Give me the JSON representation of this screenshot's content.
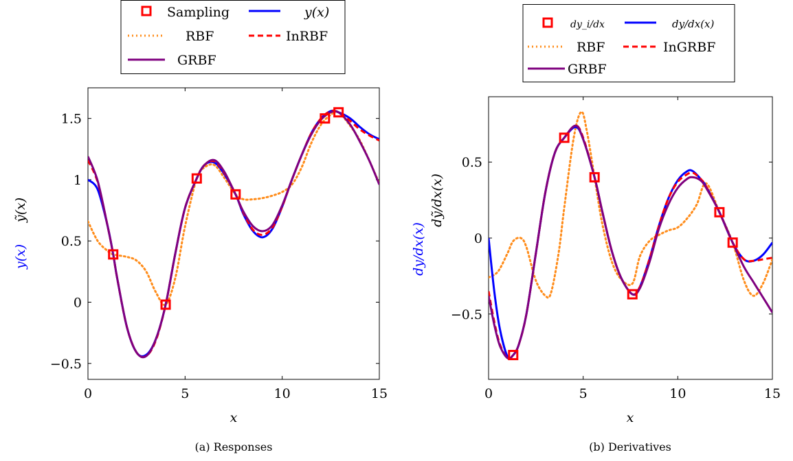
{
  "colors": {
    "sampling": "#ff0000",
    "true": "#0000ff",
    "rbf": "#ff8c1a",
    "inrbf": "#ff0000",
    "grbf": "#7f007f"
  },
  "chart_data": [
    {
      "type": "line",
      "caption": "(a) Responses",
      "xlabel": "x",
      "ylabel_blue": "y(x)",
      "ylabel_black": "ỹ(x)",
      "xlim": [
        0,
        15
      ],
      "ylim": [
        -0.63,
        1.75
      ],
      "xticks": [
        0,
        5,
        10,
        15
      ],
      "yticks": [
        -0.5,
        0,
        0.5,
        1,
        1.5
      ],
      "ytick_labels": [
        "−0.5",
        "0",
        "0.5",
        "1",
        "1.5"
      ],
      "legend": {
        "position": "top-center",
        "entries": [
          "Sampling",
          "y(x)",
          "RBF",
          "InRBF",
          "GRBF"
        ]
      },
      "sampling": {
        "name": "Sampling",
        "x": [
          1.3,
          4.0,
          5.6,
          7.6,
          12.2,
          12.9
        ],
        "y": [
          0.39,
          -0.02,
          1.01,
          0.88,
          1.5,
          1.55
        ]
      },
      "series": [
        {
          "name": "y(x)",
          "style": "true",
          "x": [
            0,
            0.5,
            1.0,
            1.3,
            1.5,
            2.0,
            2.5,
            3.0,
            3.5,
            4.0,
            4.5,
            5.0,
            5.6,
            6.0,
            6.5,
            7.0,
            7.6,
            8.0,
            8.5,
            9.0,
            9.5,
            10.0,
            10.5,
            11.0,
            11.5,
            12.0,
            12.5,
            12.9,
            13.5,
            14.0,
            14.5,
            15.0
          ],
          "y": [
            1.0,
            0.92,
            0.63,
            0.39,
            0.2,
            -0.2,
            -0.41,
            -0.43,
            -0.3,
            -0.02,
            0.4,
            0.77,
            1.01,
            1.12,
            1.14,
            1.05,
            0.88,
            0.72,
            0.58,
            0.53,
            0.6,
            0.78,
            1.0,
            1.2,
            1.38,
            1.5,
            1.56,
            1.55,
            1.5,
            1.43,
            1.37,
            1.33
          ]
        },
        {
          "name": "RBF",
          "style": "rbf",
          "x": [
            0,
            0.5,
            1.0,
            1.3,
            2.0,
            2.5,
            3.0,
            3.5,
            4.0,
            4.5,
            5.0,
            5.6,
            6.0,
            6.5,
            7.0,
            7.6,
            8.0,
            8.5,
            9.0,
            9.5,
            10.0,
            10.5,
            11.0,
            11.5,
            12.0,
            12.5,
            12.9,
            13.5,
            14.0,
            14.5,
            15.0
          ],
          "y": [
            0.66,
            0.5,
            0.42,
            0.39,
            0.37,
            0.34,
            0.25,
            0.08,
            -0.02,
            0.2,
            0.62,
            1.01,
            1.1,
            1.12,
            1.02,
            0.88,
            0.84,
            0.84,
            0.85,
            0.87,
            0.9,
            0.96,
            1.1,
            1.3,
            1.45,
            1.53,
            1.55,
            1.44,
            1.32,
            1.15,
            0.97
          ]
        },
        {
          "name": "InRBF",
          "style": "inrbf",
          "x": [
            0,
            0.5,
            1.0,
            1.3,
            1.5,
            2.0,
            2.5,
            3.0,
            3.5,
            4.0,
            4.5,
            5.0,
            5.6,
            6.0,
            6.5,
            7.0,
            7.6,
            8.0,
            8.5,
            9.0,
            9.5,
            10.0,
            10.5,
            11.0,
            11.5,
            12.0,
            12.5,
            12.9,
            13.5,
            14.0,
            14.5,
            15.0
          ],
          "y": [
            1.16,
            0.98,
            0.63,
            0.39,
            0.2,
            -0.2,
            -0.41,
            -0.44,
            -0.31,
            -0.02,
            0.4,
            0.77,
            1.01,
            1.12,
            1.15,
            1.06,
            0.88,
            0.73,
            0.59,
            0.55,
            0.61,
            0.78,
            1.0,
            1.2,
            1.38,
            1.5,
            1.56,
            1.55,
            1.48,
            1.41,
            1.36,
            1.32
          ]
        },
        {
          "name": "GRBF",
          "style": "grbf",
          "x": [
            0,
            0.5,
            1.0,
            1.3,
            1.5,
            2.0,
            2.5,
            3.0,
            3.5,
            4.0,
            4.5,
            5.0,
            5.6,
            6.0,
            6.5,
            7.0,
            7.6,
            8.0,
            8.5,
            9.0,
            9.5,
            10.0,
            10.5,
            11.0,
            11.5,
            12.0,
            12.5,
            12.9,
            13.5,
            14.0,
            14.5,
            15.0
          ],
          "y": [
            1.19,
            0.99,
            0.63,
            0.39,
            0.2,
            -0.2,
            -0.41,
            -0.44,
            -0.3,
            -0.02,
            0.4,
            0.77,
            1.01,
            1.12,
            1.16,
            1.07,
            0.88,
            0.74,
            0.62,
            0.58,
            0.63,
            0.79,
            1.0,
            1.2,
            1.37,
            1.49,
            1.55,
            1.55,
            1.45,
            1.31,
            1.15,
            0.96
          ]
        }
      ]
    },
    {
      "type": "line",
      "caption": "(b) Derivatives",
      "xlabel": "x",
      "ylabel_blue": "dy/dx(x)",
      "ylabel_black": "dỹ/dx(x)",
      "xlim": [
        0,
        15
      ],
      "ylim": [
        -0.93,
        0.93
      ],
      "xticks": [
        0,
        5,
        10,
        15
      ],
      "yticks": [
        -0.5,
        0,
        0.5
      ],
      "ytick_labels": [
        "−0.5",
        "0",
        "0.5"
      ],
      "legend": {
        "position": "top-center",
        "entries": [
          "dy_i/dx",
          "dy/dx(x)",
          "RBF",
          "InGRBF",
          "GRBF"
        ]
      },
      "sampling": {
        "name": "dy_i/dx",
        "x": [
          1.3,
          4.0,
          5.6,
          7.6,
          12.2,
          12.9
        ],
        "y": [
          -0.77,
          0.66,
          0.4,
          -0.37,
          0.17,
          -0.03
        ]
      },
      "series": [
        {
          "name": "dy/dx(x)",
          "style": "true",
          "x": [
            0,
            0.3,
            0.6,
            1.0,
            1.3,
            1.6,
            2.0,
            2.5,
            3.0,
            3.5,
            4.0,
            4.6,
            5.0,
            5.6,
            6.0,
            6.5,
            7.0,
            7.6,
            8.0,
            8.5,
            9.0,
            9.5,
            10.0,
            10.5,
            10.8,
            11.2,
            11.5,
            12.2,
            12.9,
            13.5,
            14.0,
            14.5,
            15.0
          ],
          "y": [
            0.0,
            -0.35,
            -0.6,
            -0.78,
            -0.77,
            -0.7,
            -0.5,
            -0.1,
            0.3,
            0.56,
            0.66,
            0.73,
            0.65,
            0.4,
            0.18,
            -0.08,
            -0.26,
            -0.37,
            -0.32,
            -0.14,
            0.08,
            0.26,
            0.38,
            0.44,
            0.44,
            0.39,
            0.34,
            0.17,
            -0.03,
            -0.14,
            -0.15,
            -0.11,
            -0.03
          ]
        },
        {
          "name": "RBF",
          "style": "rbf",
          "x": [
            0,
            0.5,
            1.0,
            1.3,
            1.7,
            2.0,
            2.5,
            3.0,
            3.3,
            3.7,
            4.0,
            4.5,
            4.9,
            5.2,
            5.6,
            6.0,
            6.5,
            7.0,
            7.6,
            8.0,
            8.5,
            9.0,
            9.5,
            10.0,
            10.5,
            11.0,
            11.5,
            12.2,
            12.9,
            13.5,
            14.0,
            14.5,
            15.0
          ],
          "y": [
            -0.26,
            -0.22,
            -0.1,
            -0.02,
            0.0,
            -0.06,
            -0.28,
            -0.38,
            -0.36,
            -0.1,
            0.2,
            0.66,
            0.83,
            0.7,
            0.4,
            0.1,
            -0.15,
            -0.27,
            -0.3,
            -0.12,
            -0.02,
            0.02,
            0.05,
            0.07,
            0.13,
            0.22,
            0.36,
            0.17,
            -0.03,
            -0.28,
            -0.38,
            -0.3,
            -0.14
          ]
        },
        {
          "name": "InGRBF",
          "style": "inrbf",
          "x": [
            0,
            0.3,
            0.6,
            1.0,
            1.3,
            1.6,
            2.0,
            2.5,
            3.0,
            3.5,
            4.0,
            4.6,
            5.0,
            5.6,
            6.0,
            6.5,
            7.0,
            7.6,
            8.0,
            8.5,
            9.0,
            9.5,
            10.0,
            10.5,
            10.8,
            11.2,
            11.5,
            12.2,
            12.9,
            13.5,
            14.0,
            14.5,
            15.0
          ],
          "y": [
            -0.35,
            -0.55,
            -0.7,
            -0.79,
            -0.77,
            -0.7,
            -0.5,
            -0.1,
            0.3,
            0.56,
            0.66,
            0.74,
            0.66,
            0.4,
            0.18,
            -0.08,
            -0.26,
            -0.37,
            -0.32,
            -0.14,
            0.08,
            0.26,
            0.37,
            0.42,
            0.43,
            0.39,
            0.34,
            0.17,
            -0.03,
            -0.14,
            -0.15,
            -0.14,
            -0.13
          ]
        },
        {
          "name": "GRBF",
          "style": "grbf",
          "x": [
            0,
            0.3,
            0.6,
            1.0,
            1.3,
            1.6,
            2.0,
            2.5,
            3.0,
            3.5,
            4.0,
            4.6,
            5.0,
            5.6,
            6.0,
            6.5,
            7.0,
            7.6,
            8.0,
            8.5,
            9.0,
            9.5,
            10.0,
            10.5,
            10.8,
            11.2,
            11.5,
            12.2,
            12.9,
            13.5,
            14.0,
            14.5,
            15.0
          ],
          "y": [
            -0.38,
            -0.57,
            -0.71,
            -0.79,
            -0.77,
            -0.7,
            -0.5,
            -0.1,
            0.3,
            0.56,
            0.66,
            0.74,
            0.65,
            0.4,
            0.18,
            -0.08,
            -0.26,
            -0.37,
            -0.33,
            -0.16,
            0.06,
            0.22,
            0.33,
            0.39,
            0.4,
            0.38,
            0.33,
            0.17,
            -0.03,
            -0.19,
            -0.29,
            -0.39,
            -0.49
          ]
        }
      ]
    }
  ]
}
